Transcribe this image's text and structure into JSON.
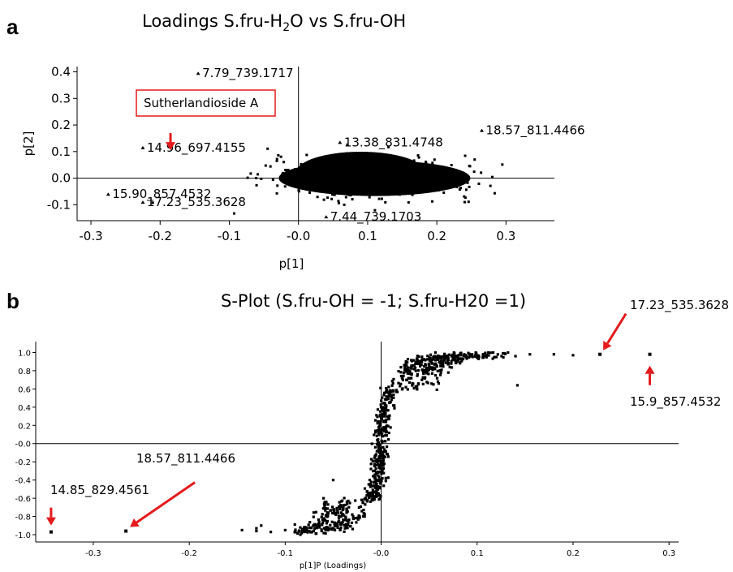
{
  "chart_data": [
    {
      "panel": "a",
      "type": "scatter",
      "title": "Loadings S.fru-H2O vs S.fru-OH",
      "title_parts": {
        "pre": "Loadings S.fru-H",
        "sub": "2",
        "post": "O vs S.fru-OH"
      },
      "xlabel": "p[1]",
      "ylabel": "p[2]",
      "xlim": [
        -0.32,
        0.37
      ],
      "ylim": [
        -0.16,
        0.42
      ],
      "x_ticks": [
        -0.3,
        -0.2,
        -0.1,
        0.0,
        0.1,
        0.2,
        0.3
      ],
      "x_tick_labels": [
        "-0.3",
        "-0.2",
        "-0.1",
        "-0.0",
        "0.1",
        "0.2",
        "0.3"
      ],
      "y_ticks": [
        -0.1,
        0.0,
        0.1,
        0.2,
        0.3,
        0.4
      ],
      "y_tick_labels": [
        "-0.1",
        "0.0",
        "0.1",
        "0.2",
        "0.3",
        "0.4"
      ],
      "grid": false,
      "labeled_points": [
        {
          "x": -0.145,
          "y": 0.395,
          "label": "7.79_739.1717"
        },
        {
          "x": -0.225,
          "y": 0.115,
          "label": "14.96_697.4155"
        },
        {
          "x": -0.275,
          "y": -0.06,
          "label": "15.90_857.4532"
        },
        {
          "x": -0.225,
          "y": -0.09,
          "label": "17.23_535.3628"
        },
        {
          "x": 0.265,
          "y": 0.18,
          "label": "18.57_811.4466"
        },
        {
          "x": 0.04,
          "y": -0.145,
          "label": "7.44_739.1703"
        },
        {
          "x": 0.06,
          "y": 0.135,
          "label": "13.38_831.4748"
        }
      ],
      "callout": {
        "text": "Sutherlandioside A",
        "x": -0.185,
        "y": 0.145
      }
    },
    {
      "panel": "b",
      "type": "scatter",
      "title": "S-Plot (S.fru-OH = -1; S.fru-H20 =1)",
      "xlabel": "p[1]P (Loadings)",
      "ylabel": "",
      "xlim": [
        -0.36,
        0.31
      ],
      "ylim": [
        -1.08,
        1.12
      ],
      "x_ticks": [
        -0.3,
        -0.2,
        -0.1,
        0.0,
        0.1,
        0.2,
        0.3
      ],
      "x_tick_labels": [
        "-0.3",
        "-0.2",
        "-0.1",
        "-0.0",
        "0.1",
        "0.2",
        "0.3"
      ],
      "y_ticks": [
        -1.0,
        -0.8,
        -0.6,
        -0.4,
        -0.2,
        0.0,
        0.2,
        0.4,
        0.6,
        0.8,
        1.0
      ],
      "y_tick_labels": [
        "-1.0",
        "-0.8",
        "-0.6",
        "-0.4",
        "-0.2",
        "-0.0",
        "0.2",
        "0.4",
        "0.6",
        "0.8",
        "1.0"
      ],
      "grid": false,
      "highlighted_points": [
        {
          "x": 0.228,
          "y": 0.98,
          "label": "17.23_535.3628"
        },
        {
          "x": 0.28,
          "y": 0.98,
          "label": "15.9_857.4532"
        },
        {
          "x": -0.266,
          "y": -0.96,
          "label": "18.57_811.4466"
        },
        {
          "x": -0.344,
          "y": -0.97,
          "label": "14.85_829.4561"
        }
      ],
      "outliers": [
        {
          "x": 0.2,
          "y": 0.97
        },
        {
          "x": 0.18,
          "y": 0.98
        },
        {
          "x": 0.155,
          "y": 0.98
        },
        {
          "x": 0.14,
          "y": 0.96
        },
        {
          "x": 0.12,
          "y": 0.95
        },
        {
          "x": 0.1,
          "y": 0.97
        },
        {
          "x": 0.142,
          "y": 0.64
        },
        {
          "x": 0.07,
          "y": 0.78
        },
        {
          "x": 0.06,
          "y": 0.66
        },
        {
          "x": 0.045,
          "y": 0.72
        },
        {
          "x": 0.08,
          "y": 0.92
        },
        {
          "x": 0.088,
          "y": 0.97
        },
        {
          "x": -0.05,
          "y": -0.4
        },
        {
          "x": -0.06,
          "y": -0.6
        },
        {
          "x": -0.09,
          "y": -0.97
        },
        {
          "x": -0.1,
          "y": -0.95
        },
        {
          "x": -0.115,
          "y": -0.97
        },
        {
          "x": -0.13,
          "y": -0.93
        },
        {
          "x": -0.145,
          "y": -0.95
        },
        {
          "x": -0.13,
          "y": -0.96
        },
        {
          "x": -0.125,
          "y": -0.9
        },
        {
          "x": -0.075,
          "y": -0.96
        },
        {
          "x": -0.055,
          "y": -0.95
        },
        {
          "x": -0.065,
          "y": -0.88
        }
      ]
    }
  ],
  "panels": {
    "a": "a",
    "b": "b"
  },
  "colors": {
    "arrow": "#e41a1c",
    "point": "#000000",
    "callout_border": "#e41a1c"
  }
}
